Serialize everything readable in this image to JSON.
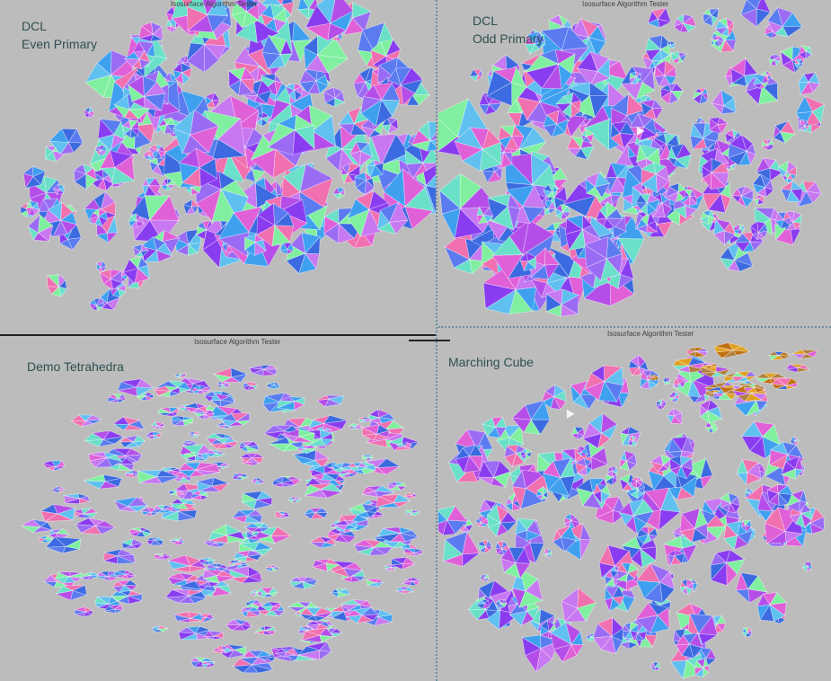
{
  "window_title": "Isosurface Algorithm Tester",
  "panes": [
    {
      "id": "tl",
      "label_lines": [
        "DCL",
        "Even Primary"
      ],
      "title": "Isosurface Algorithm Tester"
    },
    {
      "id": "tr",
      "label_lines": [
        "DCL",
        "Odd Primary"
      ],
      "title": "Isosurface Algorithm Tester"
    },
    {
      "id": "bl",
      "label_lines": [
        "Demo Tetrahedra"
      ],
      "title": "Isosurface Algorithm Tester"
    },
    {
      "id": "br",
      "label_lines": [
        "Marching Cube"
      ],
      "title": "Isosurface Algorithm Tester"
    }
  ],
  "colors": {
    "background": "#bcbcbc",
    "label": "#2f4f4f",
    "facets": [
      "#8a3df0",
      "#5a7cf0",
      "#b54ee8",
      "#3fa0f0",
      "#e060d8",
      "#6ae0c8",
      "#9a6cf4",
      "#3c6ae0",
      "#c878f0",
      "#f070b0",
      "#60c0f0",
      "#80f0a0"
    ],
    "warm_facets": [
      "#e0a020",
      "#c07010",
      "#b08040"
    ]
  }
}
